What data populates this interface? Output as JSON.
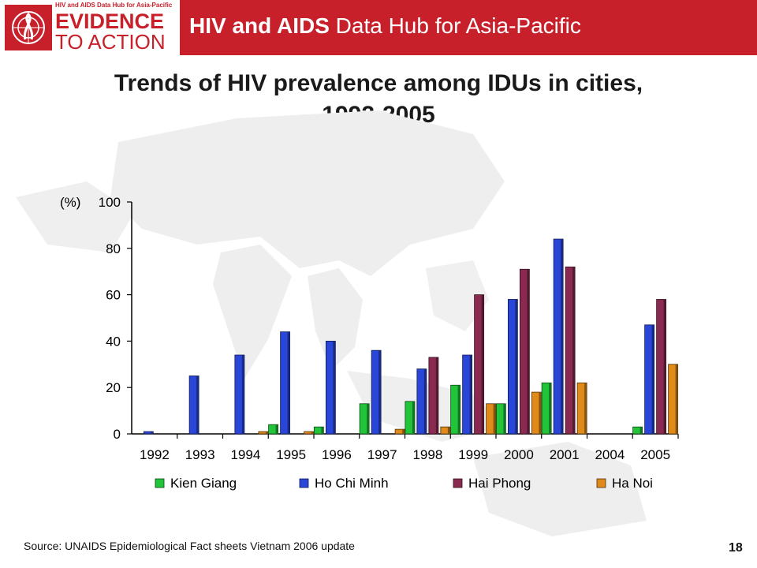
{
  "header": {
    "logo_small_text": "HIV and AIDS Data Hub for Asia-Pacific",
    "logo_line1": "EVIDENCE",
    "logo_line2": "TO ACTION",
    "title_bold": "HIV and AIDS",
    "title_rest": " Data Hub for Asia-Pacific",
    "brand_color": "#c8202b"
  },
  "slide": {
    "title_line1": "Trends of HIV prevalence among IDUs in cities,",
    "title_line2": "1992-2005",
    "source": "Source: UNAIDS Epidemiological Fact sheets Vietnam 2006 update",
    "page_number": "18"
  },
  "chart_data": {
    "type": "bar",
    "title": "",
    "ylabel": "(%)",
    "ylim": [
      0,
      100
    ],
    "yticks": [
      0,
      20,
      40,
      60,
      80,
      100
    ],
    "categories": [
      "1992",
      "1993",
      "1994",
      "1995",
      "1996",
      "1997",
      "1998",
      "1999",
      "2000",
      "2001",
      "2004",
      "2005"
    ],
    "legend_position": "bottom",
    "series": [
      {
        "name": "Kien Giang",
        "color": "#22c43a",
        "values": [
          0,
          0,
          0,
          4,
          3,
          13,
          14,
          21,
          13,
          22,
          0,
          3
        ]
      },
      {
        "name": "Ho Chi Minh",
        "color": "#2a46d8",
        "values": [
          1,
          25,
          34,
          44,
          40,
          36,
          28,
          34,
          58,
          84,
          0,
          47
        ]
      },
      {
        "name": "Hai Phong",
        "color": "#8a2a50",
        "values": [
          0,
          0,
          0,
          0,
          0,
          0,
          33,
          60,
          71,
          72,
          0,
          58
        ]
      },
      {
        "name": "Ha Noi",
        "color": "#e08a1a",
        "values": [
          0,
          0,
          1,
          1,
          0,
          2,
          3,
          13,
          18,
          22,
          0,
          30
        ]
      }
    ]
  }
}
